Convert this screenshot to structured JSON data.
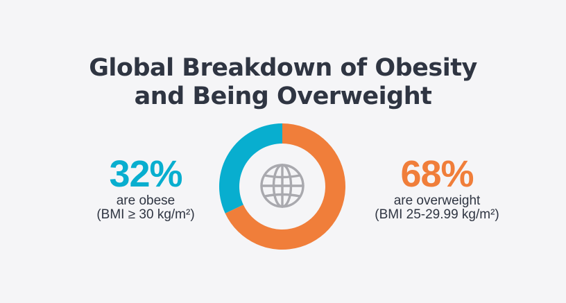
{
  "title": {
    "line1": "Global Breakdown of Obesity",
    "line2": "and Being Overweight"
  },
  "colors": {
    "background": "#F5F5F7",
    "text": "#2F3542",
    "obese": "#08AECF",
    "overweight": "#F07E3A",
    "globe": "#A9A9AE"
  },
  "center_icon": "globe-icon",
  "chart_data": {
    "type": "pie",
    "style": "donut",
    "title": "Global Breakdown of Obesity and Being Overweight",
    "slices": [
      {
        "name": "obese",
        "value": 32,
        "percent_label": "32%",
        "label": "are obese",
        "sublabel": "(BMI ≥ 30 kg/m²)",
        "color": "#08AECF"
      },
      {
        "name": "overweight",
        "value": 68,
        "percent_label": "68%",
        "label": "are overweight",
        "sublabel": "(BMI 25-29.99 kg/m²)",
        "color": "#F07E3A"
      }
    ]
  }
}
